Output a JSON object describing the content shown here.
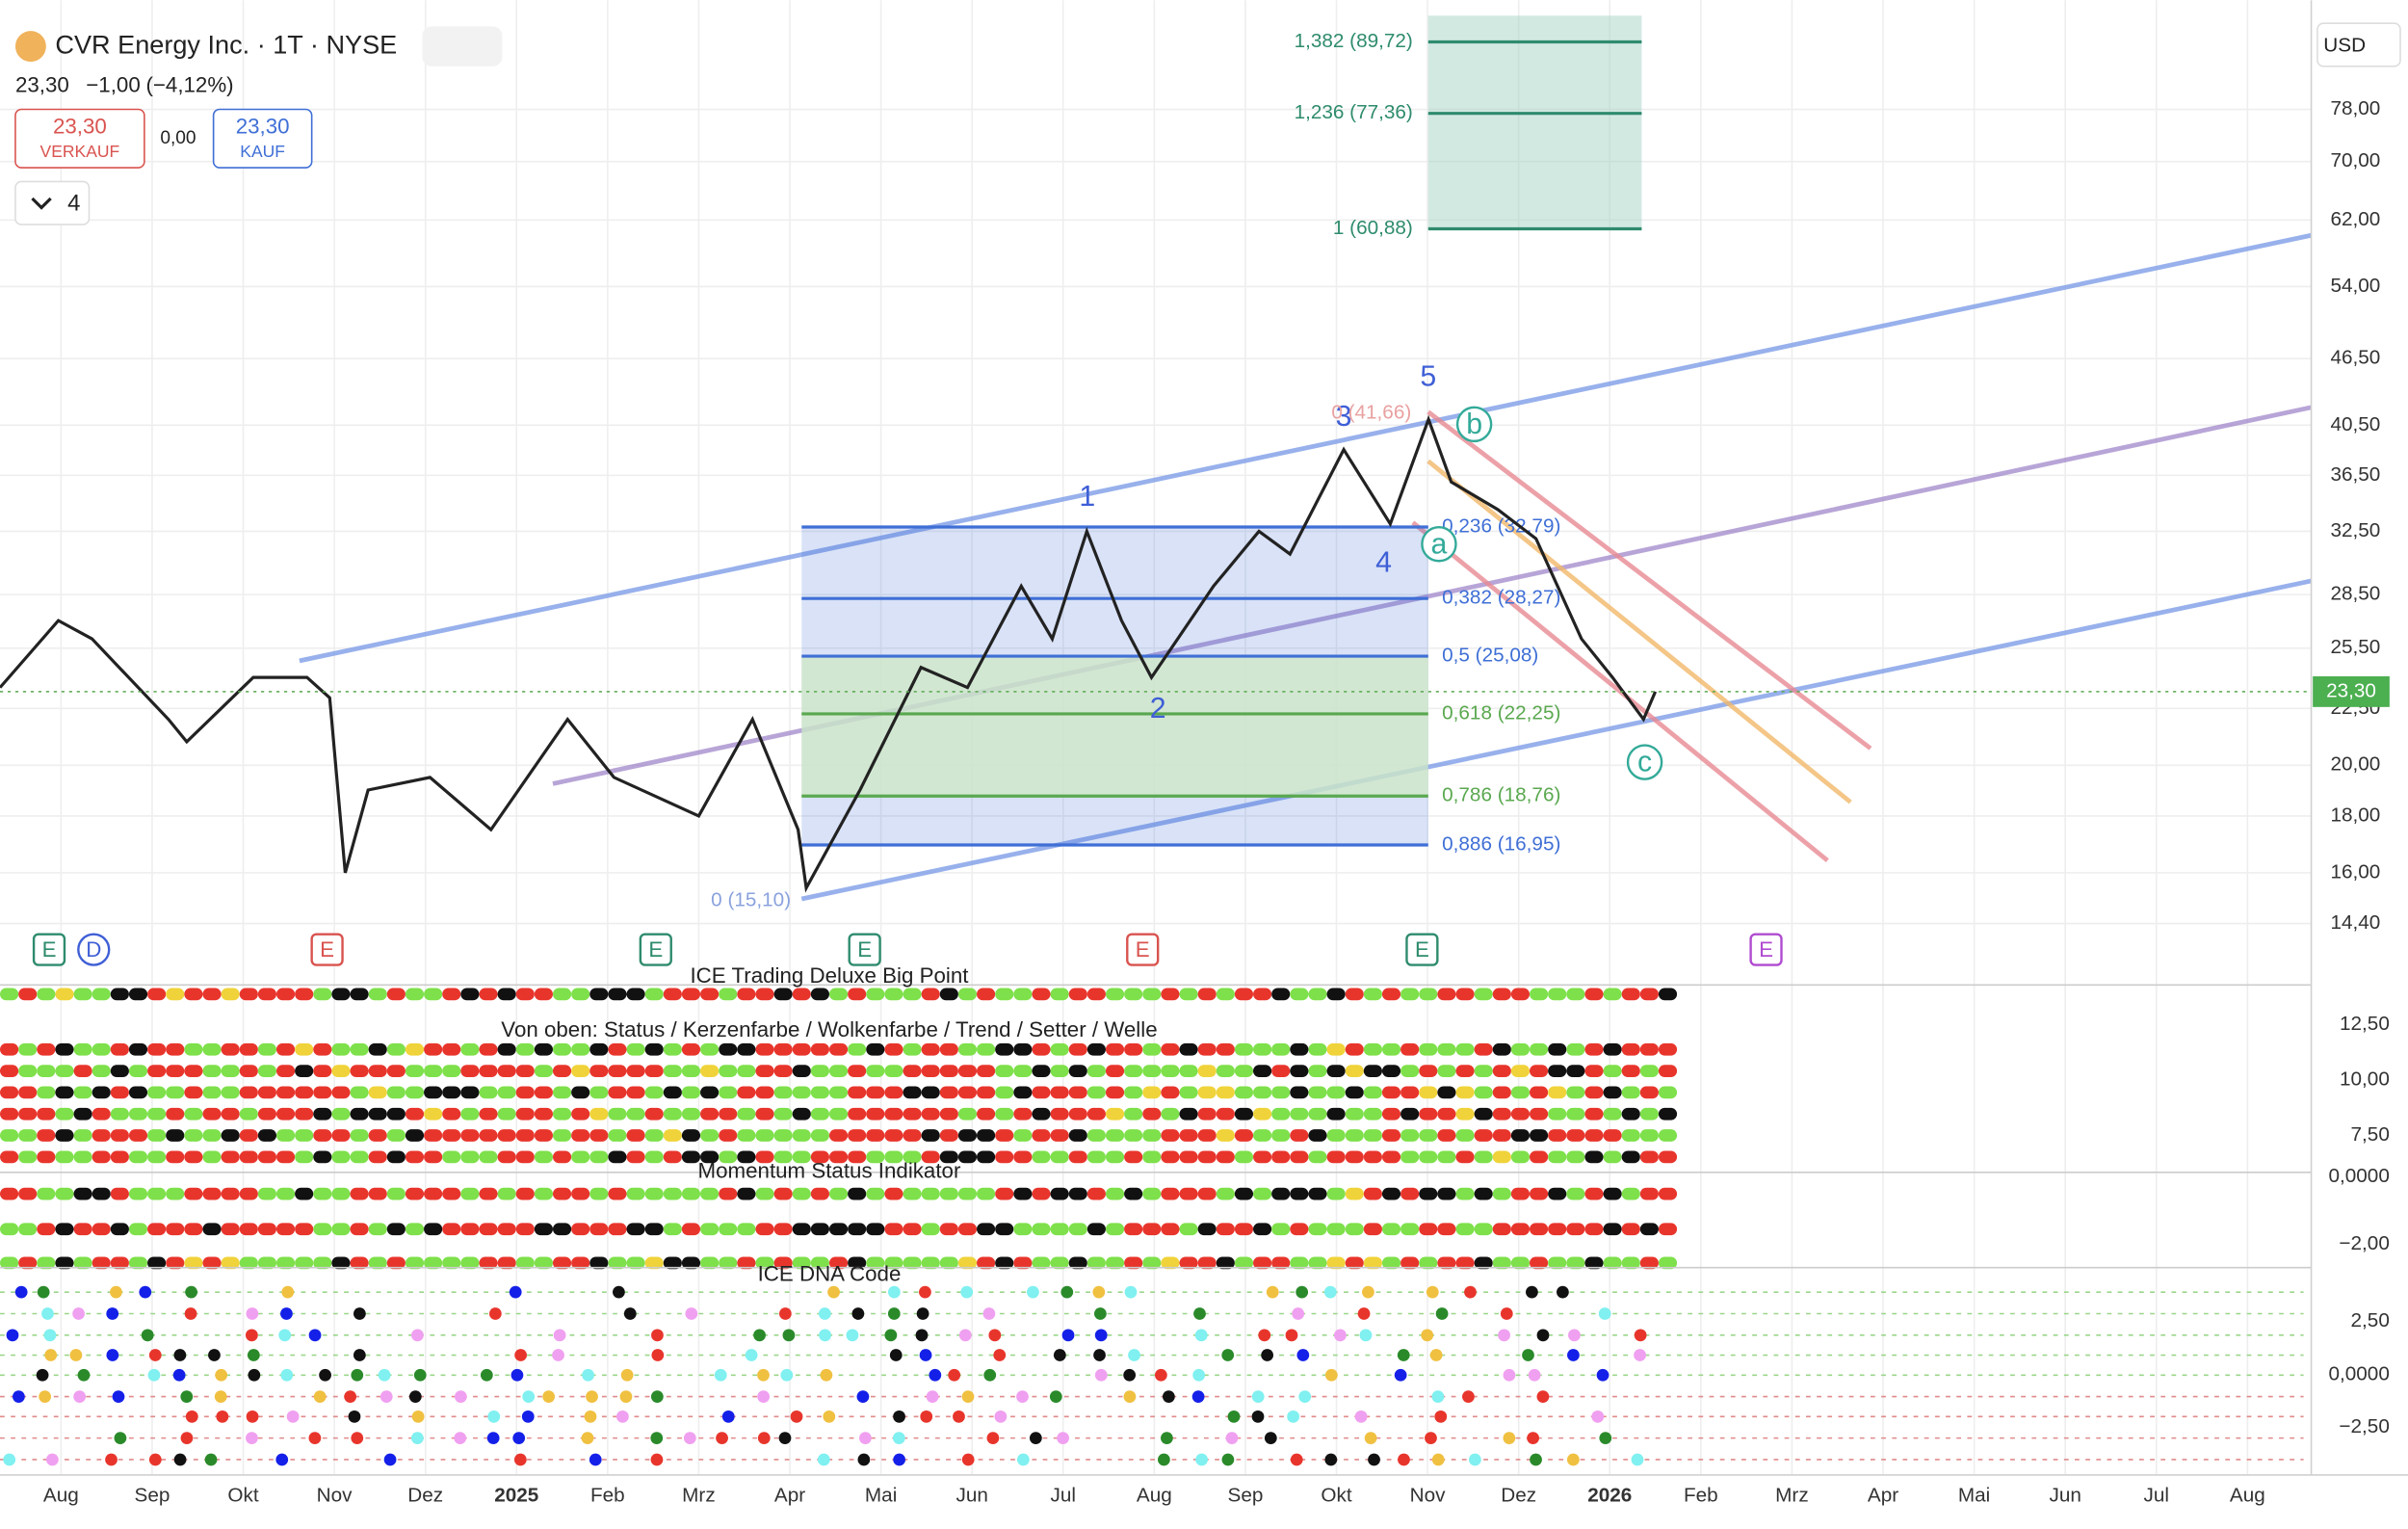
{
  "header": {
    "title": "CVR Energy Inc. · 1T · NYSE",
    "price": "23,30",
    "change": "−1,00",
    "change_pct": "(−4,12%)",
    "sell_price": "23,30",
    "sell_label": "VERKAUF",
    "spread": "0,00",
    "buy_price": "23,30",
    "buy_label": "KAUF",
    "layers": "4",
    "currency": "USD"
  },
  "chart_data": {
    "type": "line",
    "log_scale": true,
    "grid": true,
    "xlim": [
      -0.67,
      24.7
    ],
    "xticks": [
      {
        "value": 0,
        "label": "Aug"
      },
      {
        "value": 1,
        "label": "Sep"
      },
      {
        "value": 2,
        "label": "Okt"
      },
      {
        "value": 3,
        "label": "Nov"
      },
      {
        "value": 4,
        "label": "Dez"
      },
      {
        "value": 5,
        "label": "2025"
      },
      {
        "value": 6,
        "label": "Feb"
      },
      {
        "value": 7,
        "label": "Mrz"
      },
      {
        "value": 8,
        "label": "Apr"
      },
      {
        "value": 9,
        "label": "Mai"
      },
      {
        "value": 10,
        "label": "Jun"
      },
      {
        "value": 11,
        "label": "Jul"
      },
      {
        "value": 12,
        "label": "Aug"
      },
      {
        "value": 13,
        "label": "Sep"
      },
      {
        "value": 14,
        "label": "Okt"
      },
      {
        "value": 15,
        "label": "Nov"
      },
      {
        "value": 16,
        "label": "Dez"
      },
      {
        "value": 17,
        "label": "2026"
      },
      {
        "value": 18,
        "label": "Feb"
      },
      {
        "value": 19,
        "label": "Mrz"
      },
      {
        "value": 20,
        "label": "Apr"
      },
      {
        "value": 21,
        "label": "Mai"
      },
      {
        "value": 22,
        "label": "Jun"
      },
      {
        "value": 23,
        "label": "Jul"
      },
      {
        "value": 24,
        "label": "Aug"
      }
    ],
    "ylim": [
      13.13,
      94.75
    ],
    "yticks": [
      {
        "value": 78,
        "label": "78,00"
      },
      {
        "value": 70,
        "label": "70,00"
      },
      {
        "value": 62,
        "label": "62,00"
      },
      {
        "value": 54,
        "label": "54,00"
      },
      {
        "value": 46.5,
        "label": "46,50"
      },
      {
        "value": 40.5,
        "label": "40,50"
      },
      {
        "value": 36.5,
        "label": "36,50"
      },
      {
        "value": 32.5,
        "label": "32,50"
      },
      {
        "value": 28.5,
        "label": "28,50"
      },
      {
        "value": 25.5,
        "label": "25,50"
      },
      {
        "value": 22.5,
        "label": "22,50"
      },
      {
        "value": 20,
        "label": "20,00"
      },
      {
        "value": 18,
        "label": "18,00"
      },
      {
        "value": 16,
        "label": "16,00"
      },
      {
        "value": 14.4,
        "label": "14,40"
      }
    ],
    "series": [
      {
        "color": "#222222",
        "x": [
          -0.67,
          -0.03,
          0.34,
          1.18,
          1.38,
          2.11,
          2.7,
          2.95,
          3.12,
          3.37,
          4.05,
          4.72,
          5.56,
          6.07,
          7.0,
          7.59,
          8.09,
          8.18,
          8.77,
          9.44,
          9.95,
          10.54,
          10.88,
          11.26,
          11.64,
          11.97,
          12.65,
          13.15,
          13.49,
          14.08,
          14.59,
          15.01,
          15.26,
          15.77,
          16.19,
          16.69,
          17.03,
          17.37,
          17.5
        ],
        "values": [
          23.5,
          27,
          26,
          22,
          21,
          24,
          24,
          23,
          16,
          19,
          19.5,
          17.5,
          22,
          19.5,
          18,
          22,
          17.5,
          15.5,
          19,
          24.5,
          23.5,
          29,
          26,
          32.5,
          27,
          24,
          29,
          32.5,
          31,
          38.5,
          33,
          41,
          36,
          34,
          32,
          26,
          24,
          22,
          23.3
        ]
      }
    ],
    "current_price": {
      "value": 23.3,
      "label": "23,30"
    },
    "fib_levels": [
      {
        "label": "0,236 (32,79)",
        "value": 32.79
      },
      {
        "label": "0,382 (28,27)",
        "value": 28.27
      },
      {
        "label": "0,5 (25,08)",
        "value": 25.08
      },
      {
        "label": "0,618 (22,25)",
        "value": 22.25
      },
      {
        "label": "0,786 (18,76)",
        "value": 18.76
      },
      {
        "label": "0,886 (16,95)",
        "value": 16.95
      },
      {
        "label": "0 (15,10)",
        "value": 15.1
      }
    ],
    "fib_extensions": [
      {
        "label": "1,382 (89,72)",
        "value": 89.72
      },
      {
        "label": "1,236 (77,36)",
        "value": 77.36
      },
      {
        "label": "1 (60,88)",
        "value": 60.88
      }
    ],
    "annotations": [
      "1",
      "2",
      "3",
      "4",
      "5",
      "a",
      "b",
      "c",
      "0 (41,66)"
    ],
    "events": [
      "E",
      "D",
      "E",
      "E",
      "E",
      "E",
      "E",
      "E"
    ]
  },
  "indicators": {
    "titles": [
      "ICE Trading Deluxe Big Point",
      "Von oben: Status / Kerzenfarbe / Wolkenfarbe / Trend / Setter / Welle",
      "Momentum Status Indikator",
      "ICE DNA Code"
    ],
    "axis_labels": [
      "12,50",
      "10,00",
      "7,50",
      "0,0000",
      "−2,00",
      "2,50",
      "0,0000",
      "−2,50"
    ]
  }
}
